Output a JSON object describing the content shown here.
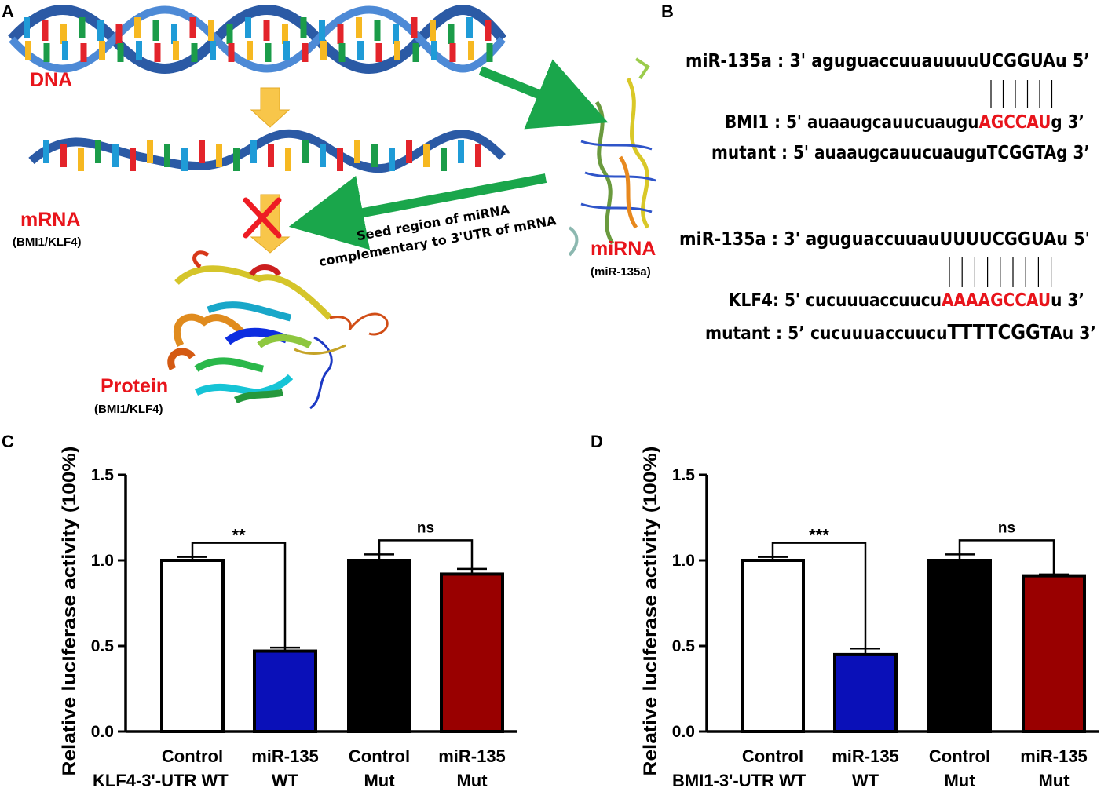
{
  "panels": {
    "a": "A",
    "b": "B",
    "c": "C",
    "d": "D"
  },
  "diagram": {
    "dna_label": "DNA",
    "mrna_label": "mRNA",
    "mrna_sub": "(BMI1/KLF4)",
    "protein_label": "Protein",
    "protein_sub": "(BMI1/KLF4)",
    "mirna_label": "miRNA",
    "mirna_sub": "(miR-135a)",
    "arrow_line1": "Seed region of miRNA",
    "arrow_line2": "complementary to 3'UTR of mRNA"
  },
  "sequences": {
    "bmi1_group": {
      "mir": {
        "prefix": "miR-135a : 3' aguguaccuuauuuuUCGGUAu 5’"
      },
      "target": {
        "prefix": "BMI1 : 5' auaaugcauucuaugu",
        "seed": "AGCCAU",
        "suffix": "g 3’"
      },
      "mutant": {
        "prefix": "mutant : 5' auaaugcauucuauguTCGGTAg 3’"
      }
    },
    "klf4_group": {
      "mir": {
        "prefix": "miR-135a : 3' aguguaccuuauUUUUCGGUAu 5'"
      },
      "target": {
        "prefix": "KLF4: 5' cucuuuaccuucu",
        "seed": "AAAAGCCAU",
        "suffix": "u 3’"
      },
      "mutant": {
        "prefix": "mutant : 5’ cucuuuaccuucu",
        "seed": "TTTTCGG",
        "suffix": "TAu 3’"
      }
    }
  },
  "chart_data": [
    {
      "type": "bar",
      "panel": "C",
      "ylabel": "Relative lucIferase activity (100%)",
      "ylim": [
        0,
        1.5
      ],
      "yticks": [
        "0.0",
        "0.5",
        "1.0",
        "1.5"
      ],
      "categories": [
        {
          "line1": "Control",
          "line2": ""
        },
        {
          "line1": "miR-135",
          "line2": "WT"
        },
        {
          "line1": "Control",
          "line2": "Mut"
        },
        {
          "line1": "miR-135",
          "line2": "Mut"
        }
      ],
      "group_label": "KLF4-3'-UTR WT",
      "values": [
        1.0,
        0.47,
        1.0,
        0.92
      ],
      "errors": [
        0.02,
        0.02,
        0.035,
        0.03
      ],
      "colors": [
        "#ffffff",
        "#0a10b8",
        "#000000",
        "#990000"
      ],
      "significance": [
        {
          "from": 0,
          "to": 1,
          "label": "**"
        },
        {
          "from": 2,
          "to": 3,
          "label": "ns"
        }
      ]
    },
    {
      "type": "bar",
      "panel": "D",
      "ylabel": "Relative lucIferase activity (100%)",
      "ylim": [
        0,
        1.5
      ],
      "yticks": [
        "0.0",
        "0.5",
        "1.0",
        "1.5"
      ],
      "categories": [
        {
          "line1": "Control",
          "line2": ""
        },
        {
          "line1": "miR-135",
          "line2": "WT"
        },
        {
          "line1": "Control",
          "line2": "Mut"
        },
        {
          "line1": "miR-135",
          "line2": "Mut"
        }
      ],
      "group_label": "BMI1-3'-UTR WT",
      "values": [
        1.0,
        0.45,
        1.0,
        0.91
      ],
      "errors": [
        0.02,
        0.035,
        0.035,
        0.008
      ],
      "colors": [
        "#ffffff",
        "#0a10b8",
        "#000000",
        "#990000"
      ],
      "significance": [
        {
          "from": 0,
          "to": 1,
          "label": "***"
        },
        {
          "from": 2,
          "to": 3,
          "label": "ns"
        }
      ]
    }
  ]
}
